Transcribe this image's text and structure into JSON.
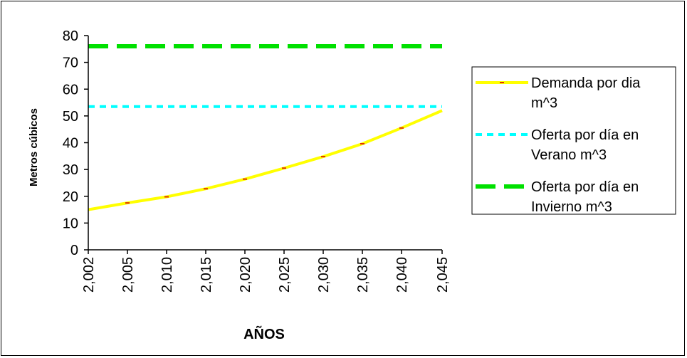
{
  "chart_data": {
    "type": "line",
    "xlabel": "AÑOS",
    "ylabel": "Metros cúbicos",
    "ylim": [
      0,
      80
    ],
    "yticks": [
      "0",
      "10",
      "20",
      "30",
      "40",
      "50",
      "60",
      "70",
      "80"
    ],
    "categories": [
      "2,002",
      "2,005",
      "2,010",
      "2,015",
      "2,020",
      "2,025",
      "2,030",
      "2,035",
      "2,040",
      "2,045"
    ],
    "series": [
      {
        "name_lines": [
          "Demanda por dia",
          "m^3"
        ],
        "color": "#ffff00",
        "style": "solid",
        "values": [
          15,
          17.5,
          19.8,
          22.8,
          26.4,
          30.5,
          34.8,
          39.6,
          45.5,
          52
        ]
      },
      {
        "name_lines": [
          "Oferta por día en",
          "Verano m^3"
        ],
        "color": "#00ffff",
        "style": "dotted",
        "values": [
          53.5,
          53.5,
          53.5,
          53.5,
          53.5,
          53.5,
          53.5,
          53.5,
          53.5,
          53.5
        ]
      },
      {
        "name_lines": [
          "Oferta por día en",
          "Invierno m^3"
        ],
        "color": "#00e000",
        "style": "dashed",
        "values": [
          76,
          76,
          76,
          76,
          76,
          76,
          76,
          76,
          76,
          76
        ]
      }
    ],
    "grid": false,
    "legend": "right"
  }
}
